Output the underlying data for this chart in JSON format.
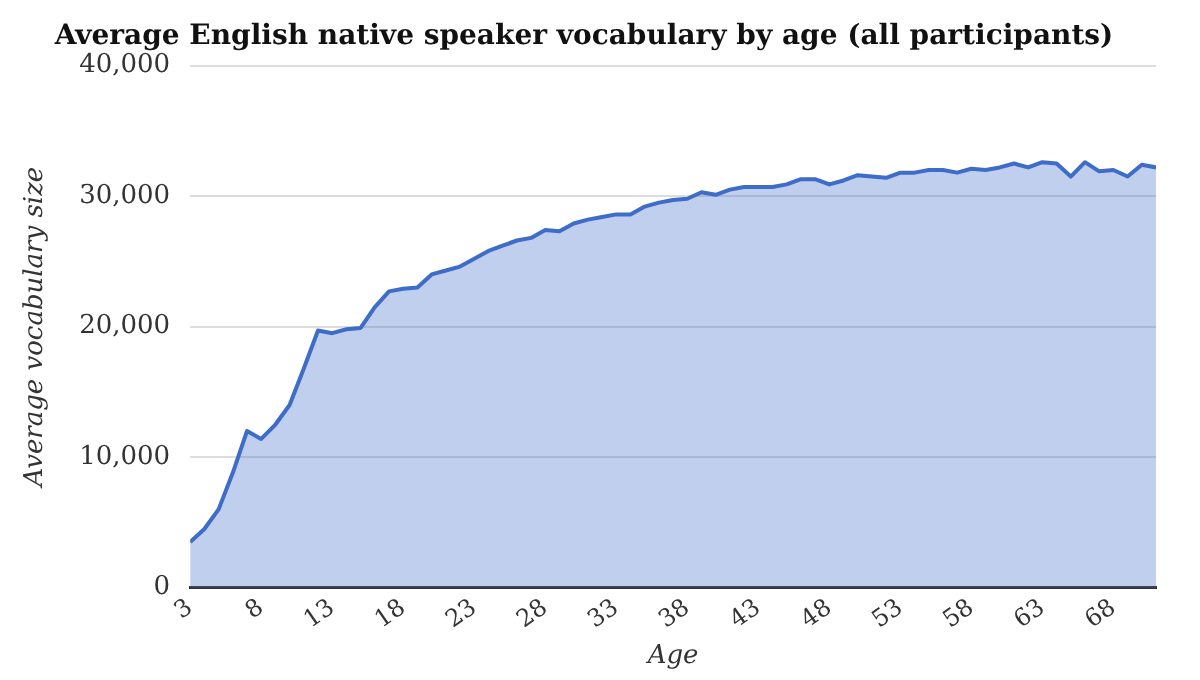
{
  "chart_data": {
    "type": "area",
    "title": "Average English native speaker vocabulary by age (all participants)",
    "xlabel": "Age",
    "ylabel": "Average vocabulary size",
    "x": [
      3,
      4,
      5,
      6,
      7,
      8,
      9,
      10,
      11,
      12,
      13,
      14,
      15,
      16,
      17,
      18,
      19,
      20,
      21,
      22,
      23,
      24,
      25,
      26,
      27,
      28,
      29,
      30,
      31,
      32,
      33,
      34,
      35,
      36,
      37,
      38,
      39,
      40,
      41,
      42,
      43,
      44,
      45,
      46,
      47,
      48,
      49,
      50,
      51,
      52,
      53,
      54,
      55,
      56,
      57,
      58,
      59,
      60,
      61,
      62,
      63,
      64,
      65,
      66,
      67,
      68,
      69,
      70,
      71
    ],
    "series": [
      {
        "color": "#3d6cc9",
        "values": [
          3500,
          4500,
          6000,
          8800,
          12000,
          11400,
          12500,
          14000,
          16800,
          19700,
          19500,
          19800,
          19900,
          21500,
          22700,
          22900,
          23000,
          24000,
          24300,
          24600,
          25200,
          25800,
          26200,
          26600,
          26800,
          27400,
          27300,
          27900,
          28200,
          28400,
          28600,
          28600,
          29200,
          29500,
          29700,
          29800,
          30300,
          30100,
          30500,
          30700,
          30700,
          30700,
          30900,
          31300,
          31300,
          30900,
          31200,
          31600,
          31500,
          31400,
          31800,
          31800,
          32000,
          32000,
          31800,
          32100,
          32000,
          32200,
          32500,
          32200,
          32600,
          32500,
          31500,
          32600,
          31900,
          32000,
          31500,
          32400,
          32200
        ]
      }
    ],
    "xlim": [
      3,
      71
    ],
    "xticks": [
      3,
      8,
      13,
      18,
      23,
      28,
      33,
      38,
      43,
      48,
      53,
      58,
      63,
      68
    ],
    "ylim": [
      0,
      40000
    ],
    "yticks": [
      {
        "value": 0,
        "label": "0"
      },
      {
        "value": 10000,
        "label": "10,000"
      },
      {
        "value": 20000,
        "label": "20,000"
      },
      {
        "value": 30000,
        "label": "30,000"
      },
      {
        "value": 40000,
        "label": "40,000"
      }
    ],
    "grid": "y",
    "legend": false
  }
}
